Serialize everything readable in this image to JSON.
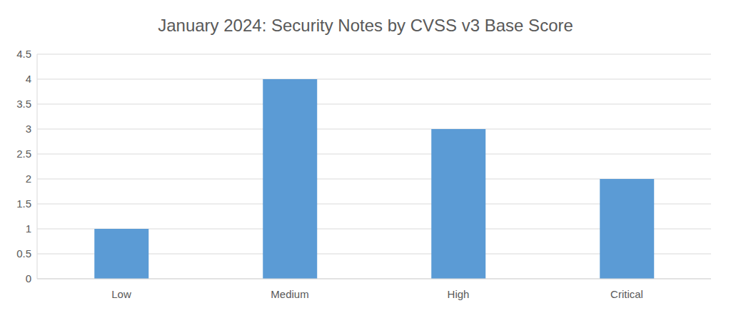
{
  "chart_data": {
    "type": "bar",
    "title": "January 2024: Security Notes by CVSS v3 Base Score",
    "categories": [
      "Low",
      "Medium",
      "High",
      "Critical"
    ],
    "values": [
      1,
      4,
      3,
      2
    ],
    "color": "#5b9bd5",
    "ylim": [
      0,
      4.5
    ],
    "yticks": [
      0,
      0.5,
      1,
      1.5,
      2,
      2.5,
      3,
      3.5,
      4,
      4.5
    ],
    "grid": true
  }
}
